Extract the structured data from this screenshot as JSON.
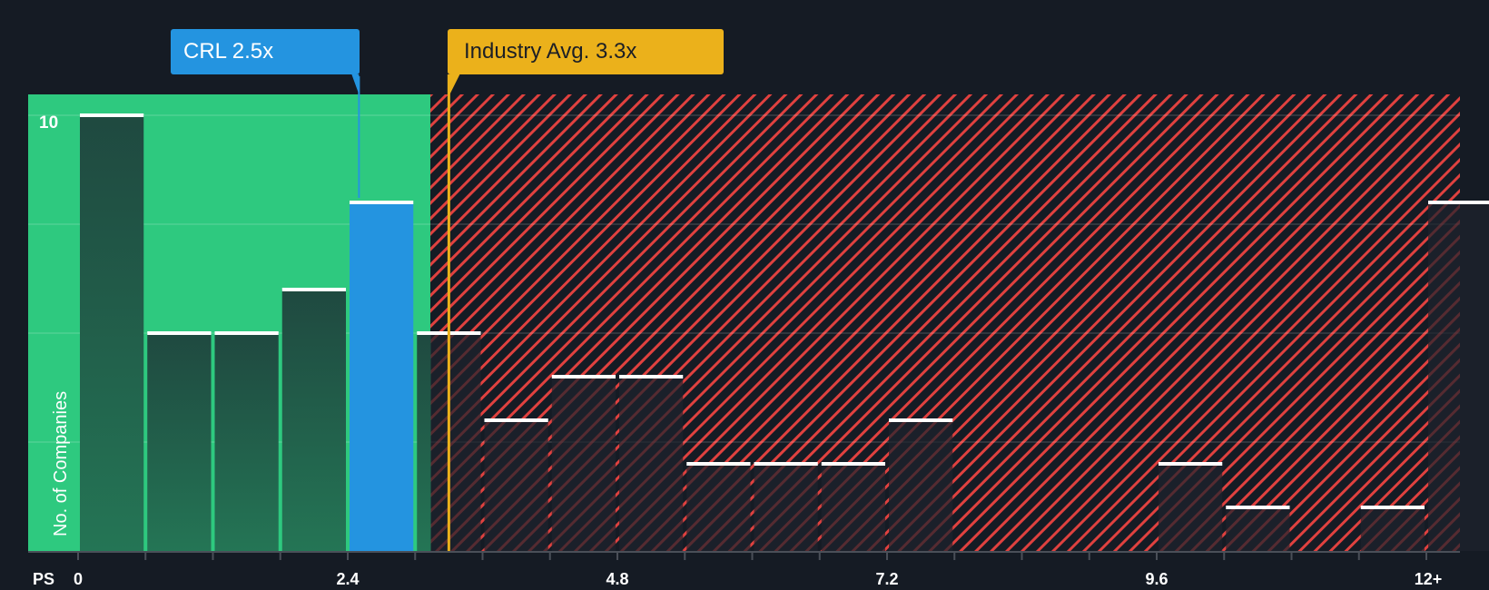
{
  "chart_data": {
    "type": "bar",
    "title": "",
    "xlabel": "PS",
    "ylabel": "No. of Companies",
    "x_tick_labels": [
      "0",
      "2.4",
      "4.8",
      "7.2",
      "9.6",
      "12+"
    ],
    "x_tick_values": [
      0,
      2.4,
      4.8,
      7.2,
      9.6,
      12
    ],
    "y_tick_labels": [
      "10"
    ],
    "ylim": [
      0,
      10.4
    ],
    "grid": true,
    "bin_width": 0.6,
    "categories": [
      "0-0.6",
      "0.6-1.2",
      "1.2-1.8",
      "1.8-2.4",
      "2.4-3.0",
      "3.0-3.6",
      "3.6-4.2",
      "4.2-4.8",
      "4.8-5.4",
      "5.4-6.0",
      "6.0-6.6",
      "6.6-7.2",
      "7.2-7.8",
      "7.8-8.4",
      "8.4-9.0",
      "9.0-9.6",
      "9.6-10.2",
      "10.2-10.8",
      "10.8-11.4",
      "11.4-12.0",
      "12+"
    ],
    "values": [
      10,
      5,
      5,
      6,
      8,
      5,
      3,
      4,
      4,
      2,
      2,
      2,
      3,
      0,
      0,
      0,
      2,
      1,
      0,
      1,
      8
    ],
    "highlight_bin_index": 4,
    "annotations": [
      {
        "label": "CRL 2.5x",
        "value": 2.5,
        "color": "#2494e0"
      },
      {
        "label": "Industry Avg. 3.3x",
        "value": 3.3,
        "color": "#ebb11b"
      }
    ],
    "fair_zone_end": 3.14
  },
  "labels": {
    "company": "CRL 2.5x",
    "industry": "Industry Avg. 3.3x",
    "x_axis": "PS",
    "y_axis": "No. of Companies",
    "y_top_tick": "10"
  },
  "ticks": {
    "t0": "0",
    "t1": "2.4",
    "t2": "4.8",
    "t3": "7.2",
    "t4": "9.6",
    "t5": "12+"
  },
  "colors": {
    "background": "#151b24",
    "undervalued_zone": "#2ec97f",
    "overvalued_hatch": "#e0413f",
    "company_bar": "#2494e0",
    "industry_line": "#ebb11b",
    "bar_cap": "#ffffff"
  }
}
